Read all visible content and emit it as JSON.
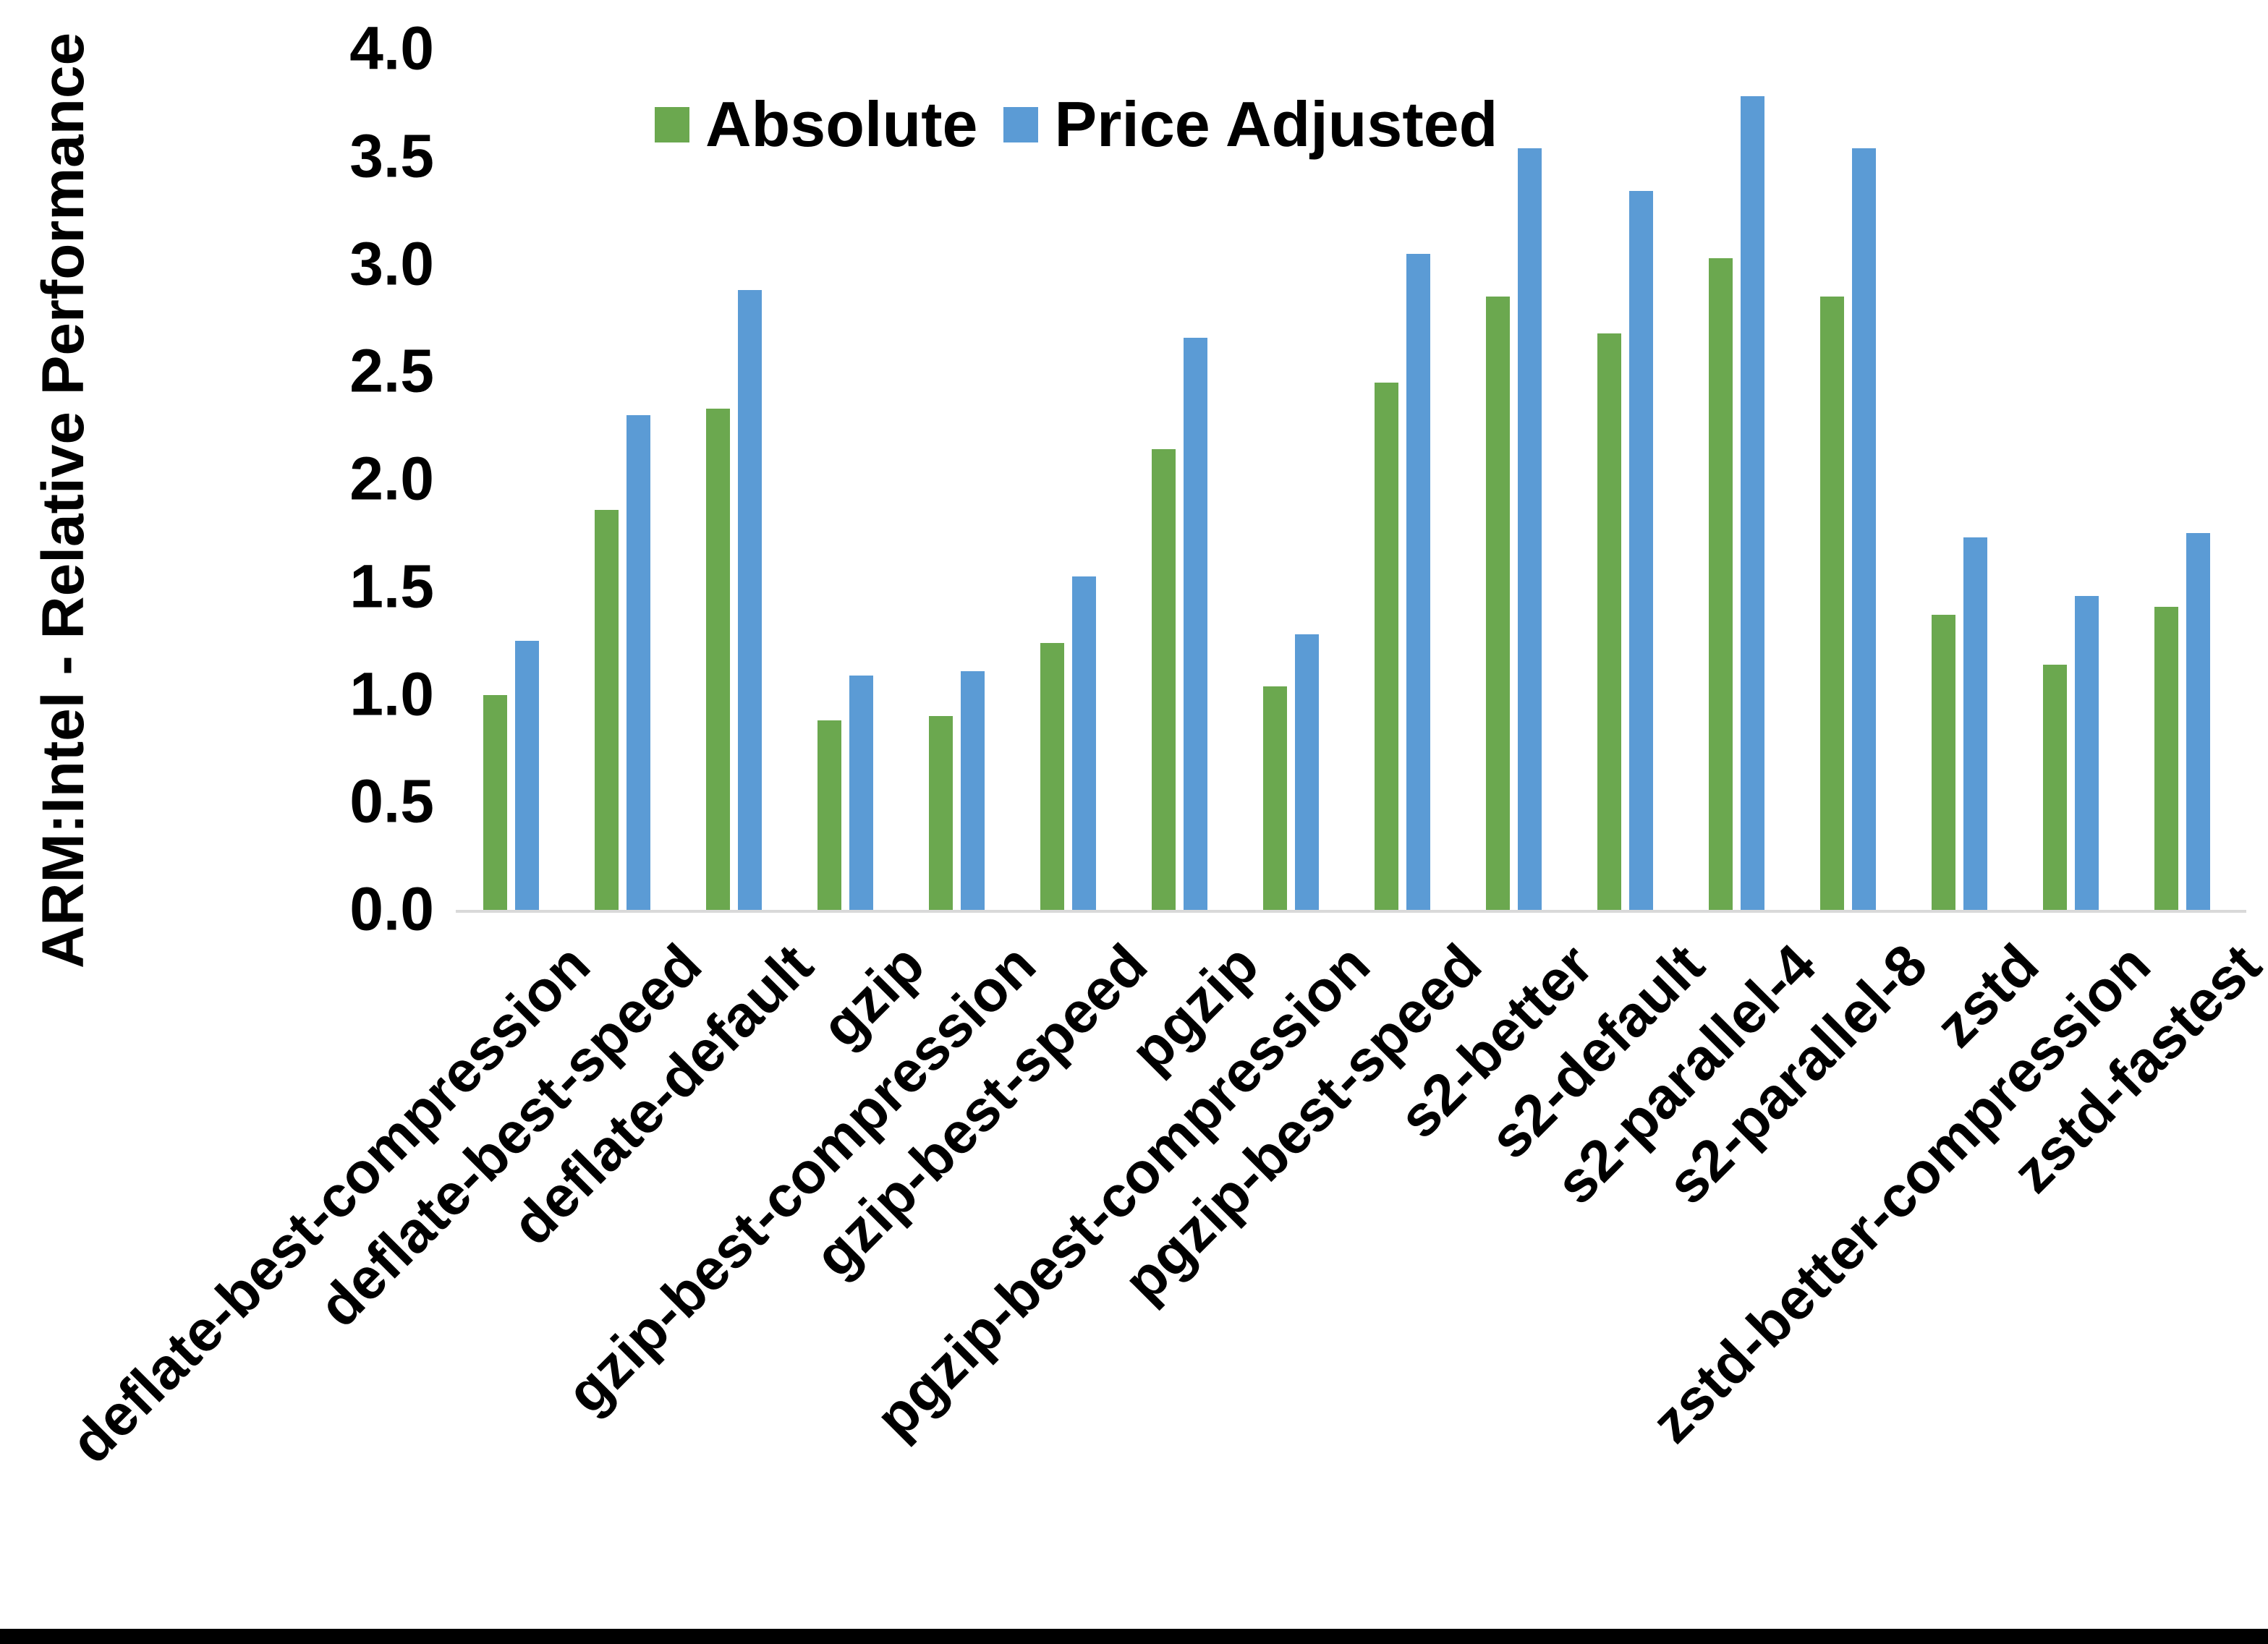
{
  "chart_data": {
    "type": "bar",
    "title": "",
    "xlabel": "",
    "ylabel": "ARM:Intel - Relative Performance",
    "ylim": [
      0.0,
      4.0
    ],
    "ytick_step": 0.5,
    "grid": false,
    "legend_position": "top-center",
    "background_color": "#ffffff",
    "axis_line_color": "#d9d9d9",
    "yticks": [
      "0.0",
      "0.5",
      "1.0",
      "1.5",
      "2.0",
      "2.5",
      "3.0",
      "3.5",
      "4.0"
    ],
    "categories": [
      "deflate-best-compression",
      "deflate-best-speed",
      "deflate-default",
      "gzip",
      "gzip-best-compression",
      "gzip-best-speed",
      "pgzip",
      "pgzip-best-compression",
      "pgzip-best-speed",
      "s2-better",
      "s2-default",
      "s2-parallel-4",
      "s2-parallel-8",
      "zstd",
      "zstd-better-compression",
      "zstd-fastest"
    ],
    "series": [
      {
        "name": "Absolute",
        "color": "#6BA84F",
        "values": [
          1.0,
          1.86,
          2.33,
          0.88,
          0.9,
          1.24,
          2.14,
          1.04,
          2.45,
          2.85,
          2.68,
          3.03,
          2.85,
          1.37,
          1.14,
          1.41
        ]
      },
      {
        "name": "Price Adjusted",
        "color": "#5B9BD5",
        "values": [
          1.25,
          2.3,
          2.88,
          1.09,
          1.11,
          1.55,
          2.66,
          1.28,
          3.05,
          3.54,
          3.34,
          3.78,
          3.54,
          1.73,
          1.46,
          1.75
        ]
      }
    ]
  }
}
